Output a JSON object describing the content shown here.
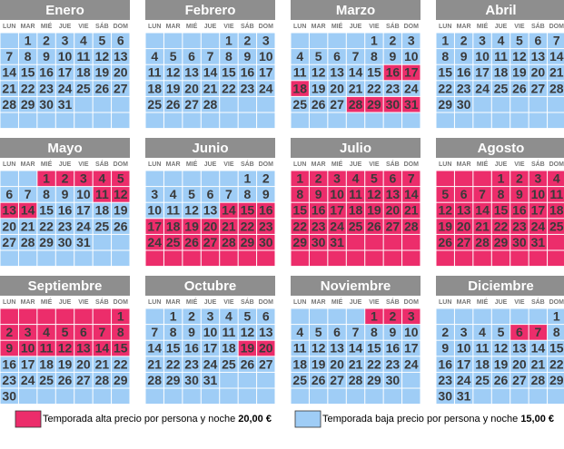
{
  "weekdays": [
    "LUN",
    "MAR",
    "MIÉ",
    "JUE",
    "VIE",
    "SÁB",
    "DOM"
  ],
  "months": [
    {
      "name": "Enero",
      "weeks": [
        [
          null,
          1,
          2,
          3,
          4,
          5,
          6
        ],
        [
          7,
          8,
          9,
          10,
          11,
          12,
          13
        ],
        [
          14,
          15,
          16,
          17,
          18,
          19,
          20
        ],
        [
          21,
          22,
          23,
          24,
          25,
          26,
          27
        ],
        [
          28,
          29,
          30,
          31,
          null,
          null,
          null
        ],
        [
          null,
          null,
          null,
          null,
          null,
          null,
          null
        ]
      ],
      "high": [
        "0000000",
        "0000000",
        "0000000",
        "0000000",
        "0000000",
        "0000000"
      ]
    },
    {
      "name": "Febrero",
      "weeks": [
        [
          null,
          null,
          null,
          null,
          1,
          2,
          3
        ],
        [
          4,
          5,
          6,
          7,
          8,
          9,
          10
        ],
        [
          11,
          12,
          13,
          14,
          15,
          16,
          17
        ],
        [
          18,
          19,
          20,
          21,
          22,
          23,
          24
        ],
        [
          25,
          26,
          27,
          28,
          null,
          null,
          null
        ],
        [
          null,
          null,
          null,
          null,
          null,
          null,
          null
        ]
      ],
      "high": [
        "0000000",
        "0000000",
        "0000000",
        "0000000",
        "0000000",
        "0000000"
      ]
    },
    {
      "name": "Marzo",
      "weeks": [
        [
          null,
          null,
          null,
          null,
          1,
          2,
          3
        ],
        [
          4,
          5,
          6,
          7,
          8,
          9,
          10
        ],
        [
          11,
          12,
          13,
          14,
          15,
          16,
          17
        ],
        [
          18,
          19,
          20,
          21,
          22,
          23,
          24
        ],
        [
          25,
          26,
          27,
          28,
          29,
          30,
          31
        ],
        [
          null,
          null,
          null,
          null,
          null,
          null,
          null
        ]
      ],
      "high": [
        "0000000",
        "0000000",
        "0000011",
        "1000000",
        "0001111",
        "0000000"
      ]
    },
    {
      "name": "Abril",
      "weeks": [
        [
          1,
          2,
          3,
          4,
          5,
          6,
          7
        ],
        [
          8,
          9,
          10,
          11,
          12,
          13,
          14
        ],
        [
          15,
          16,
          17,
          18,
          19,
          20,
          21
        ],
        [
          22,
          23,
          24,
          25,
          26,
          27,
          28
        ],
        [
          29,
          30,
          null,
          null,
          null,
          null,
          null
        ],
        [
          null,
          null,
          null,
          null,
          null,
          null,
          null
        ]
      ],
      "high": [
        "0000000",
        "0000000",
        "0000000",
        "0000000",
        "0000000",
        "0000000"
      ]
    },
    {
      "name": "Mayo",
      "weeks": [
        [
          null,
          null,
          1,
          2,
          3,
          4,
          5
        ],
        [
          6,
          7,
          8,
          9,
          10,
          11,
          12
        ],
        [
          13,
          14,
          15,
          16,
          17,
          18,
          19
        ],
        [
          20,
          21,
          22,
          23,
          24,
          25,
          26
        ],
        [
          27,
          28,
          29,
          30,
          31,
          null,
          null
        ],
        [
          null,
          null,
          null,
          null,
          null,
          null,
          null
        ]
      ],
      "high": [
        "0011111",
        "0000011",
        "1100000",
        "0000000",
        "0000000",
        "0000000"
      ]
    },
    {
      "name": "Junio",
      "weeks": [
        [
          null,
          null,
          null,
          null,
          null,
          1,
          2
        ],
        [
          3,
          4,
          5,
          6,
          7,
          8,
          9
        ],
        [
          10,
          11,
          12,
          13,
          14,
          15,
          16
        ],
        [
          17,
          18,
          19,
          20,
          21,
          22,
          23
        ],
        [
          24,
          25,
          26,
          27,
          28,
          29,
          30
        ],
        [
          null,
          null,
          null,
          null,
          null,
          null,
          null
        ]
      ],
      "high": [
        "0000000",
        "0000000",
        "0000111",
        "1111111",
        "1111111",
        "1111111"
      ]
    },
    {
      "name": "Julio",
      "weeks": [
        [
          1,
          2,
          3,
          4,
          5,
          6,
          7
        ],
        [
          8,
          9,
          10,
          11,
          12,
          13,
          14
        ],
        [
          15,
          16,
          17,
          18,
          19,
          20,
          21
        ],
        [
          22,
          23,
          24,
          25,
          26,
          27,
          28
        ],
        [
          29,
          30,
          31,
          null,
          null,
          null,
          null
        ],
        [
          null,
          null,
          null,
          null,
          null,
          null,
          null
        ]
      ],
      "high": [
        "1111111",
        "1111111",
        "1111111",
        "1111111",
        "1111111",
        "1111111"
      ]
    },
    {
      "name": "Agosto",
      "weeks": [
        [
          null,
          null,
          null,
          1,
          2,
          3,
          4
        ],
        [
          5,
          6,
          7,
          8,
          9,
          10,
          11
        ],
        [
          12,
          13,
          14,
          15,
          16,
          17,
          18
        ],
        [
          19,
          20,
          21,
          22,
          23,
          24,
          25
        ],
        [
          26,
          27,
          28,
          29,
          30,
          31,
          null
        ],
        [
          null,
          null,
          null,
          null,
          null,
          null,
          null
        ]
      ],
      "high": [
        "1111111",
        "1111111",
        "1111111",
        "1111111",
        "1111111",
        "1111111"
      ]
    },
    {
      "name": "Septiembre",
      "weeks": [
        [
          null,
          null,
          null,
          null,
          null,
          null,
          1
        ],
        [
          2,
          3,
          4,
          5,
          6,
          7,
          8
        ],
        [
          9,
          10,
          11,
          12,
          13,
          14,
          15
        ],
        [
          16,
          17,
          18,
          19,
          20,
          21,
          22
        ],
        [
          23,
          24,
          25,
          26,
          27,
          28,
          29
        ],
        [
          30,
          null,
          null,
          null,
          null,
          null,
          null
        ]
      ],
      "high": [
        "1111111",
        "1111111",
        "1111111",
        "0000000",
        "0000000",
        "0000000"
      ]
    },
    {
      "name": "Octubre",
      "weeks": [
        [
          null,
          1,
          2,
          3,
          4,
          5,
          6
        ],
        [
          7,
          8,
          9,
          10,
          11,
          12,
          13
        ],
        [
          14,
          15,
          16,
          17,
          18,
          19,
          20
        ],
        [
          21,
          22,
          23,
          24,
          25,
          26,
          27
        ],
        [
          28,
          29,
          30,
          31,
          null,
          null,
          null
        ],
        [
          null,
          null,
          null,
          null,
          null,
          null,
          null
        ]
      ],
      "high": [
        "0000000",
        "0000000",
        "0000011",
        "0000000",
        "0000000",
        "0000000"
      ]
    },
    {
      "name": "Noviembre",
      "weeks": [
        [
          null,
          null,
          null,
          null,
          1,
          2,
          3
        ],
        [
          4,
          5,
          6,
          7,
          8,
          9,
          10
        ],
        [
          11,
          12,
          13,
          14,
          15,
          16,
          17
        ],
        [
          18,
          19,
          20,
          21,
          22,
          23,
          24
        ],
        [
          25,
          26,
          27,
          28,
          29,
          30,
          null
        ],
        [
          null,
          null,
          null,
          null,
          null,
          null,
          null
        ]
      ],
      "high": [
        "0000111",
        "0000000",
        "0000000",
        "0000000",
        "0000000",
        "0000000"
      ]
    },
    {
      "name": "Diciembre",
      "weeks": [
        [
          null,
          null,
          null,
          null,
          null,
          null,
          1
        ],
        [
          2,
          3,
          4,
          5,
          6,
          7,
          8
        ],
        [
          9,
          10,
          11,
          12,
          13,
          14,
          15
        ],
        [
          16,
          17,
          18,
          19,
          20,
          21,
          22
        ],
        [
          23,
          24,
          25,
          26,
          27,
          28,
          29
        ],
        [
          30,
          31,
          null,
          null,
          null,
          null,
          null
        ]
      ],
      "high": [
        "0000000",
        "0000110",
        "0000000",
        "0000000",
        "0000000",
        "0000000"
      ]
    }
  ],
  "legend": [
    {
      "text": "Temporada alta precio por persona y noche ",
      "price": "20,00 €",
      "color": "#ec2d6b"
    },
    {
      "text": "Temporada baja precio por persona y noche ",
      "price": "15,00 €",
      "color": "#9fcdf6"
    }
  ]
}
